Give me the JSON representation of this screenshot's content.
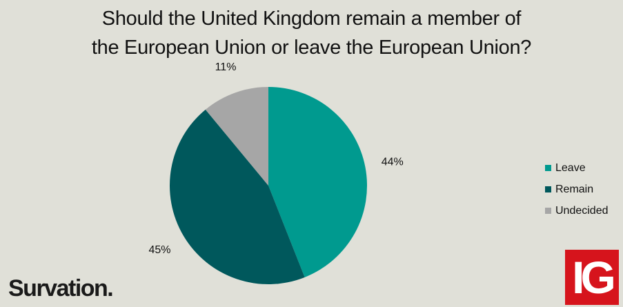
{
  "title_lines": [
    "Should the United Kingdom remain a member of",
    "the European Union or leave the European Union?"
  ],
  "chart_data": {
    "type": "pie",
    "categories": [
      "Leave",
      "Remain",
      "Undecided"
    ],
    "values": [
      44,
      45,
      11
    ],
    "labels": [
      "44%",
      "45%",
      "11%"
    ],
    "colors": [
      "#009a8f",
      "#00585c",
      "#a6a6a6"
    ],
    "legend_position": "right"
  },
  "brand": "Survation.",
  "logo_text": "IG"
}
